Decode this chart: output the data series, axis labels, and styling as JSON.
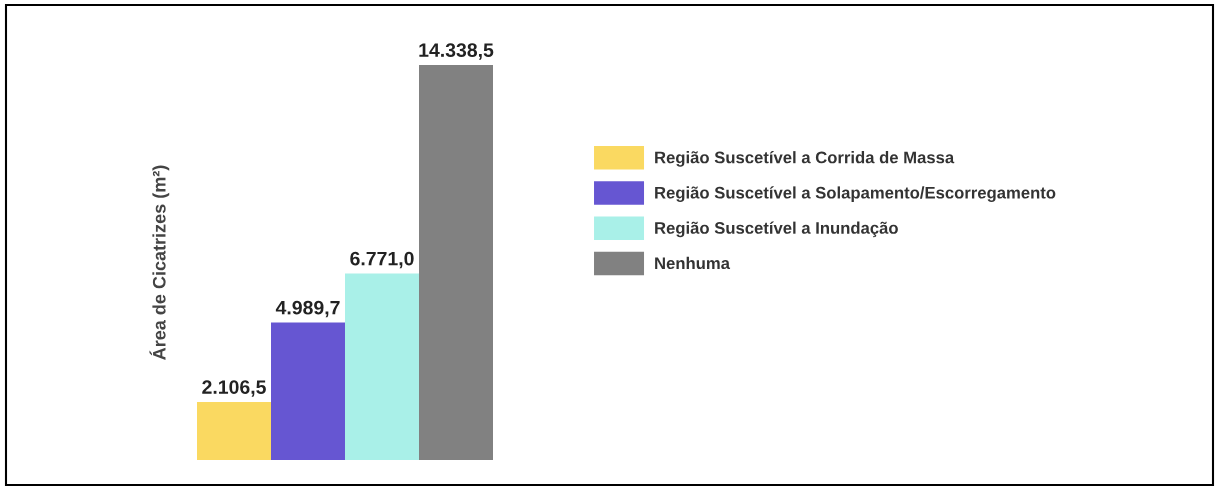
{
  "chart_data": {
    "type": "bar",
    "ylabel": "Área de Cicatrizes (m²)",
    "categories": [
      null
    ],
    "series": [
      {
        "name": "Região Suscetível a Corrida de Massa",
        "color": "#fad961",
        "values": [
          2106.5
        ],
        "value_labels": [
          "2.106,5"
        ]
      },
      {
        "name": "Região Suscetível a Solapamento/Escorregamento",
        "color": "#6656d2",
        "values": [
          4989.7
        ],
        "value_labels": [
          "4.989,7"
        ]
      },
      {
        "name": "Região Suscetível a Inundação",
        "color": "#a9f0e8",
        "values": [
          6771.0
        ],
        "value_labels": [
          "6.771,0"
        ]
      },
      {
        "name": "Nenhuma",
        "color": "#818181",
        "values": [
          14338.5
        ],
        "value_labels": [
          "14.338,5"
        ]
      }
    ],
    "legend": "right",
    "grid": false
  }
}
